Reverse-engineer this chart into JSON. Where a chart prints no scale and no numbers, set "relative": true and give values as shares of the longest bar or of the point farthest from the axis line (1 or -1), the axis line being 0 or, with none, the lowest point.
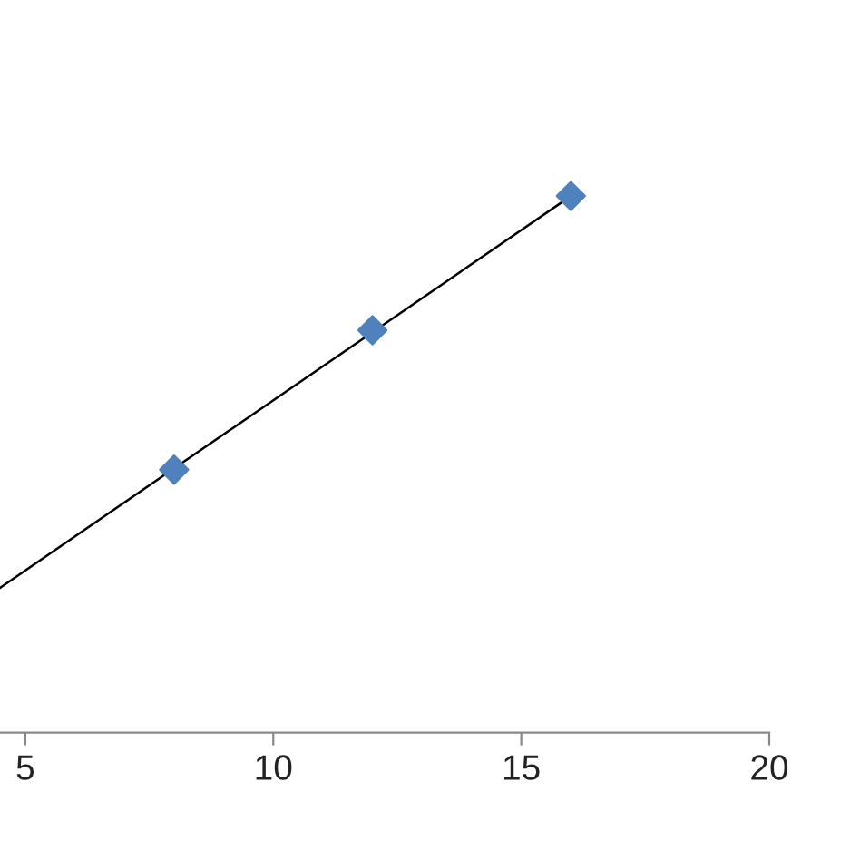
{
  "chart_data": {
    "type": "scatter",
    "relative": true,
    "xlim": [
      4.49,
      20
    ],
    "xticks": [
      5,
      10,
      15,
      20
    ],
    "grid": false,
    "legend": false,
    "series": [
      {
        "marker": "diamond",
        "color": "#4f81bd",
        "x": [
          8,
          12,
          16
        ],
        "values": [
          0.49,
          0.75,
          1.0
        ]
      },
      {
        "type": "line",
        "marker": "none",
        "color": "#000000",
        "x": [
          4.49,
          16
        ],
        "values": [
          0.27,
          1.0
        ]
      }
    ]
  }
}
